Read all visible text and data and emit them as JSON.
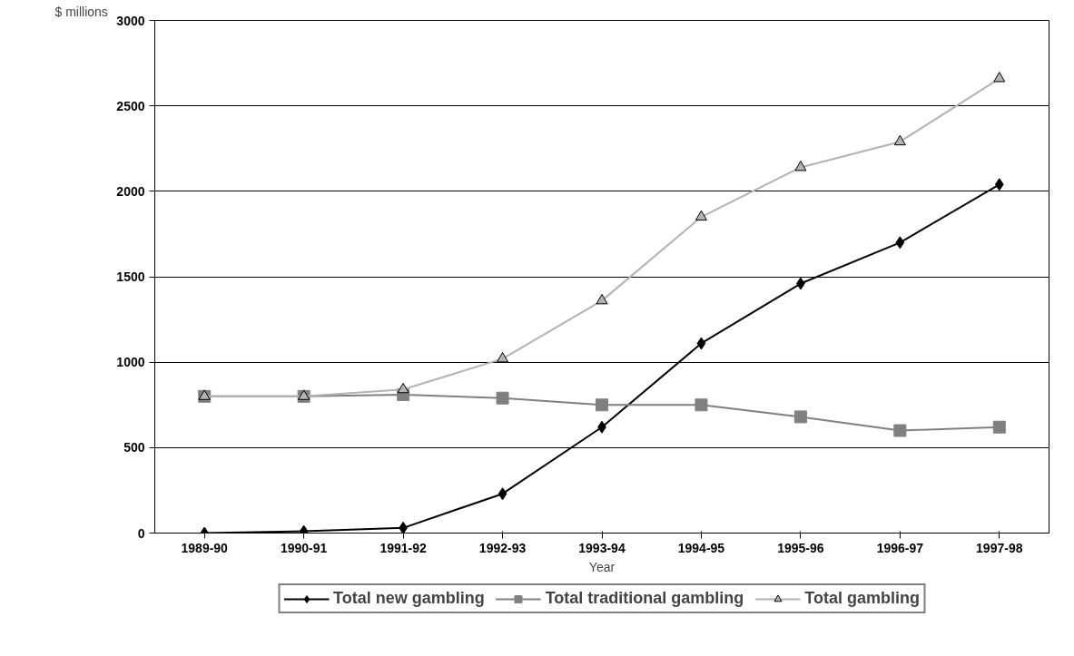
{
  "chart_data": {
    "type": "line",
    "xlabel": "Year",
    "ylabel": "$ millions",
    "categories": [
      "1989-90",
      "1990-91",
      "1991-92",
      "1992-93",
      "1993-94",
      "1994-95",
      "1995-96",
      "1996-97",
      "1997-98"
    ],
    "series": [
      {
        "name": "Total new gambling",
        "color": "#000000",
        "marker": "diamond",
        "values": [
          0,
          10,
          30,
          230,
          620,
          1110,
          1460,
          1700,
          2040
        ]
      },
      {
        "name": "Total traditional gambling",
        "color": "#808080",
        "marker": "square",
        "values": [
          800,
          800,
          810,
          790,
          750,
          750,
          680,
          600,
          620
        ]
      },
      {
        "name": "Total gambling",
        "color": "#b3b3b3",
        "marker": "triangle",
        "values": [
          800,
          800,
          840,
          1020,
          1360,
          1850,
          2140,
          2290,
          2660
        ]
      }
    ],
    "ylim": [
      0,
      3000
    ],
    "yticks": [
      0,
      500,
      1000,
      1500,
      2000,
      2500,
      3000
    ],
    "grid": "y",
    "legend": "bottom",
    "line_style": "solid"
  }
}
